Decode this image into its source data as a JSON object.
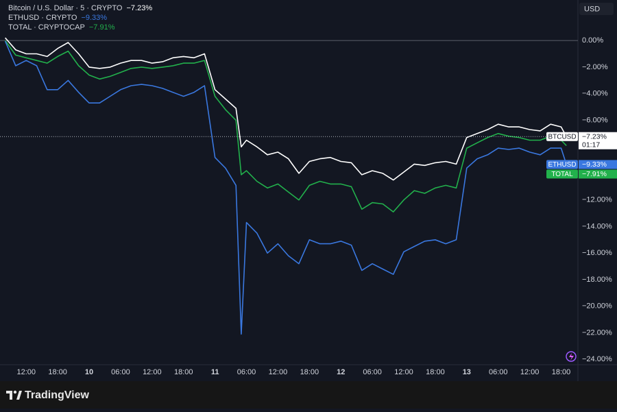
{
  "chart_data": {
    "type": "line",
    "currency": "USD",
    "countdown": "01:17",
    "x": [
      8,
      10,
      12,
      14,
      16,
      18,
      20,
      22,
      24,
      26,
      28,
      30,
      32,
      34,
      36,
      38,
      40,
      42,
      44,
      46,
      48,
      50,
      52,
      53,
      54,
      56,
      58,
      60,
      62,
      64,
      66,
      68,
      70,
      72,
      74,
      76,
      78,
      80,
      82,
      84,
      86,
      88,
      90,
      92,
      94,
      96,
      98,
      100,
      102,
      104,
      106,
      108,
      110,
      112,
      114,
      115
    ],
    "xlim": [
      7,
      117.2
    ],
    "xticks": [
      {
        "value": 12,
        "label": "12:00"
      },
      {
        "value": 18,
        "label": "18:00"
      },
      {
        "value": 24,
        "label": "10"
      },
      {
        "value": 30,
        "label": "06:00"
      },
      {
        "value": 36,
        "label": "12:00"
      },
      {
        "value": 42,
        "label": "18:00"
      },
      {
        "value": 48,
        "label": "11"
      },
      {
        "value": 54,
        "label": "06:00"
      },
      {
        "value": 60,
        "label": "12:00"
      },
      {
        "value": 66,
        "label": "18:00"
      },
      {
        "value": 72,
        "label": "12"
      },
      {
        "value": 78,
        "label": "06:00"
      },
      {
        "value": 84,
        "label": "12:00"
      },
      {
        "value": 90,
        "label": "18:00"
      },
      {
        "value": 96,
        "label": "13"
      },
      {
        "value": 102,
        "label": "06:00"
      },
      {
        "value": 108,
        "label": "12:00"
      },
      {
        "value": 114,
        "label": "18:00"
      }
    ],
    "ylim": [
      -24.4,
      3.05
    ],
    "yticks": [
      {
        "value": 0,
        "label": "0.00%"
      },
      {
        "value": -2,
        "label": "−2.00%"
      },
      {
        "value": -4,
        "label": "−4.00%"
      },
      {
        "value": -6,
        "label": "−6.00%"
      },
      {
        "value": -8,
        "label": "−8.00%"
      },
      {
        "value": -10,
        "label": "−10.00%"
      },
      {
        "value": -12,
        "label": "−12.00%"
      },
      {
        "value": -14,
        "label": "−14.00%"
      },
      {
        "value": -16,
        "label": "−16.00%"
      },
      {
        "value": -18,
        "label": "−18.00%"
      },
      {
        "value": -20,
        "label": "−20.00%"
      },
      {
        "value": -22,
        "label": "−22.00%"
      },
      {
        "value": -24,
        "label": "−24.00%"
      }
    ],
    "series": [
      {
        "name": "BTCUSD",
        "legend": "Bitcoin / U.S. Dollar · 5 · CRYPTO",
        "last_label": "−7.23%",
        "color": "#ffffff",
        "values": [
          0.2,
          -0.7,
          -1.0,
          -1.0,
          -1.2,
          -0.6,
          -0.15,
          -1.0,
          -2.0,
          -2.1,
          -2.0,
          -1.7,
          -1.5,
          -1.5,
          -1.7,
          -1.6,
          -1.3,
          -1.2,
          -1.3,
          -1.0,
          -3.7,
          -4.4,
          -5.1,
          -8.0,
          -7.5,
          -8.0,
          -8.6,
          -8.4,
          -8.9,
          -10.0,
          -9.1,
          -8.9,
          -8.8,
          -9.1,
          -9.2,
          -10.1,
          -9.8,
          -10.0,
          -10.5,
          -9.9,
          -9.3,
          -9.4,
          -9.2,
          -9.1,
          -9.3,
          -7.3,
          -7.0,
          -6.7,
          -6.3,
          -6.5,
          -6.5,
          -6.7,
          -6.8,
          -6.3,
          -6.5,
          -7.23
        ]
      },
      {
        "name": "ETHUSD",
        "legend": "ETHUSD · CRYPTO",
        "last_label": "−9.33%",
        "color": "#3a78e0",
        "values": [
          -0.05,
          -1.9,
          -1.5,
          -1.9,
          -3.7,
          -3.7,
          -3.0,
          -3.9,
          -4.7,
          -4.7,
          -4.2,
          -3.7,
          -3.4,
          -3.3,
          -3.4,
          -3.6,
          -3.9,
          -4.2,
          -3.9,
          -3.4,
          -8.8,
          -9.6,
          -10.9,
          -22.1,
          -13.7,
          -14.5,
          -16.0,
          -15.3,
          -16.2,
          -16.8,
          -15.0,
          -15.3,
          -15.3,
          -15.1,
          -15.4,
          -17.3,
          -16.8,
          -17.2,
          -17.6,
          -15.9,
          -15.5,
          -15.1,
          -15.0,
          -15.3,
          -15.0,
          -9.6,
          -8.9,
          -8.6,
          -8.1,
          -8.2,
          -8.1,
          -8.4,
          -8.6,
          -8.1,
          -8.1,
          -9.33
        ]
      },
      {
        "name": "TOTAL",
        "legend": "TOTAL · CRYPTOCAP",
        "last_label": "−7.91%",
        "color": "#22b14c",
        "values": [
          0,
          -1.1,
          -1.3,
          -1.5,
          -1.7,
          -1.2,
          -0.8,
          -1.9,
          -2.6,
          -2.9,
          -2.7,
          -2.4,
          -2.1,
          -2.0,
          -2.1,
          -2.0,
          -1.9,
          -1.7,
          -1.7,
          -1.5,
          -4.2,
          -5.2,
          -6.0,
          -10.1,
          -9.8,
          -10.6,
          -11.1,
          -10.8,
          -11.4,
          -12.0,
          -10.9,
          -10.6,
          -10.8,
          -10.8,
          -11.0,
          -12.7,
          -12.2,
          -12.3,
          -12.9,
          -12.0,
          -11.3,
          -11.5,
          -11.1,
          -10.9,
          -11.1,
          -8.1,
          -7.7,
          -7.3,
          -7.0,
          -7.2,
          -7.3,
          -7.5,
          -7.5,
          -7.2,
          -7.5,
          -7.91
        ]
      }
    ]
  },
  "footer": {
    "brand": "TradingView"
  }
}
